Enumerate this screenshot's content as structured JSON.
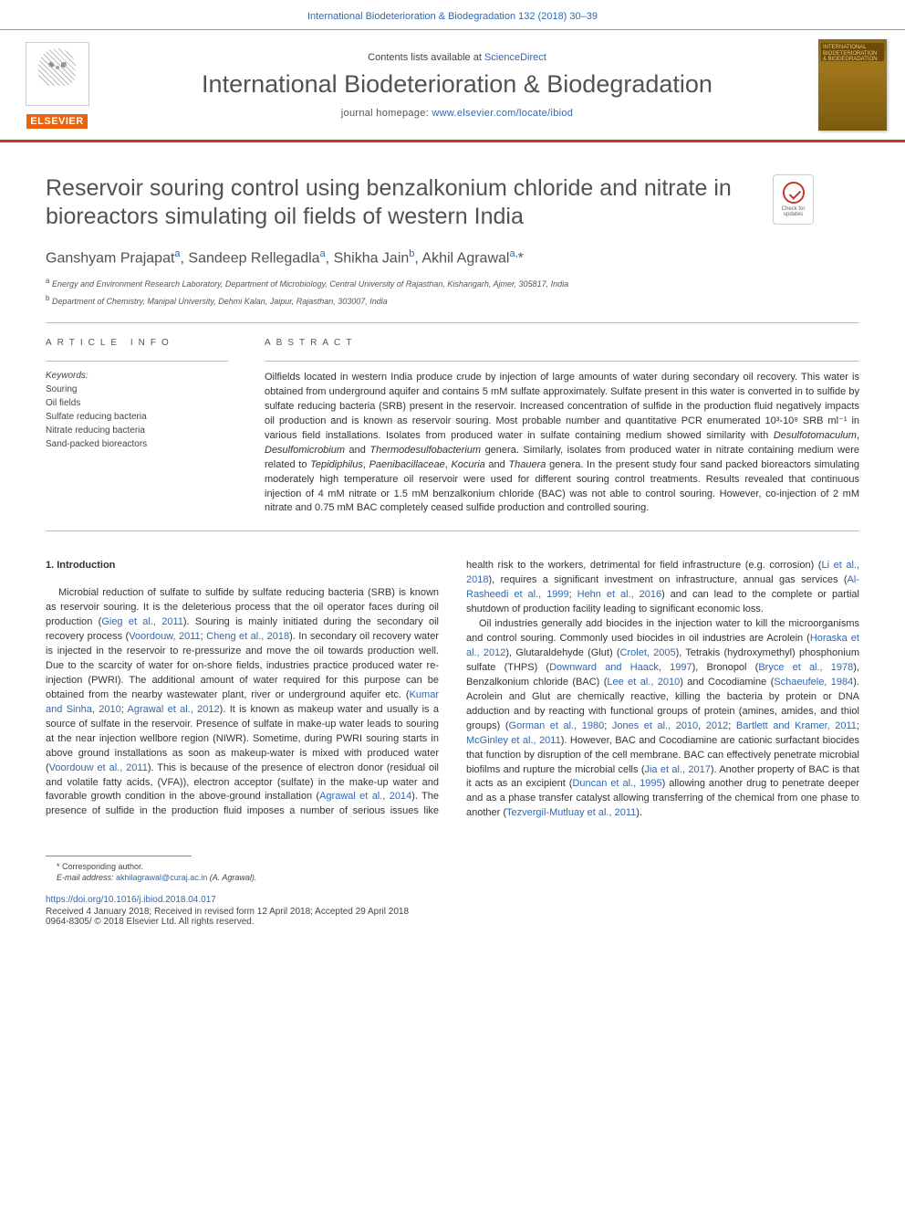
{
  "header": {
    "top_citation": "International Biodeterioration & Biodegradation 132 (2018) 30–39",
    "contents_prefix": "Contents lists available at ",
    "sciencedirect": "ScienceDirect",
    "journal_title": "International Biodeterioration & Biodegradation",
    "homepage_prefix": "journal homepage: ",
    "homepage_url": "www.elsevier.com/locate/ibiod",
    "elsevier": "ELSEVIER",
    "cover_line1": "INTERNATIONAL",
    "cover_line2": "BIODETERIORATION",
    "cover_line3": "& BIODEGRADATION",
    "check_updates": "Check for updates"
  },
  "article": {
    "title": "Reservoir souring control using benzalkonium chloride and nitrate in bioreactors simulating oil fields of western India",
    "authors_html": "Ganshyam Prajapat<sup>a</sup>, Sandeep Rellegadla<sup>a</sup>, Shikha Jain<sup>b</sup>, Akhil Agrawal<sup>a,</sup>*",
    "affil_a": "a Energy and Environment Research Laboratory, Department of Microbiology, Central University of Rajasthan, Kishangarh, Ajmer, 305817, India",
    "affil_b": "b Department of Chemistry, Manipal University, Dehmi Kalan, Jaipur, Rajasthan, 303007, India"
  },
  "info": {
    "heading": "ARTICLE INFO",
    "keywords_label": "Keywords:",
    "keywords": "Souring\nOil fields\nSulfate reducing bacteria\nNitrate reducing bacteria\nSand-packed bioreactors"
  },
  "abstract": {
    "heading": "ABSTRACT",
    "text": "Oilfields located in western India produce crude by injection of large amounts of water during secondary oil recovery. This water is obtained from underground aquifer and contains 5 mM sulfate approximately. Sulfate present in this water is converted in to sulfide by sulfate reducing bacteria (SRB) present in the reservoir. Increased concentration of sulfide in the production fluid negatively impacts oil production and is known as reservoir souring. Most probable number and quantitative PCR enumerated 10³-10⁸ SRB ml⁻¹ in various field installations. Isolates from produced water in sulfate containing medium showed similarity with Desulfotomaculum, Desulfomicrobium and Thermodesulfobacterium genera. Similarly, isolates from produced water in nitrate containing medium were related to Tepidiphilus, Paenibacillaceae, Kocuria and Thauera genera. In the present study four sand packed bioreactors simulating moderately high temperature oil reservoir were used for different souring control treatments. Results revealed that continuous injection of 4 mM nitrate or 1.5 mM benzalkonium chloride (BAC) was not able to control souring. However, co-injection of 2 mM nitrate and 0.75 mM BAC completely ceased sulfide production and controlled souring."
  },
  "body": {
    "section_heading": "1. Introduction",
    "para1_prefix": "Microbial reduction of sulfate to sulfide by sulfate reducing bacteria (SRB) is known as reservoir souring. It is the deleterious process that the oil operator faces during oil production (",
    "cite1": "Gieg et al., 2011",
    "para1_mid1": "). Souring is mainly initiated during the secondary oil recovery process (",
    "cite2": "Voordouw, 2011",
    "para1_mid1b": "; ",
    "cite2b": "Cheng et al., 2018",
    "para1_mid2": "). In secondary oil recovery water is injected in the reservoir to re-pressurize and move the oil towards production well. Due to the scarcity of water for on-shore fields, industries practice produced water re-injection (PWRI). The additional amount of water required for this purpose can be obtained from the nearby wastewater plant, river or underground aquifer etc. (",
    "cite3": "Kumar and Sinha, 2010",
    "para1_mid3": "; ",
    "cite4": "Agrawal et al., 2012",
    "para1_mid4": "). It is known as makeup water and usually is a source of sulfate in the reservoir. Presence of sulfate in make-up water leads to souring at the near injection wellbore region (NIWR). Sometime, during PWRI souring starts in above ground installations as soon as makeup-water is mixed with produced water (",
    "cite5": "Voordouw et al., 2011",
    "para1_mid5": "). This is because of the presence of electron donor (residual oil and volatile fatty acids, (VFA)), electron acceptor (sulfate) in the make-up water and favorable growth condition in the above-ground installation (",
    "cite6": "Agrawal et al., 2014",
    "para1_mid6": "). The presence of sulfide in the production fluid imposes a number of serious issues like health risk to the workers, detrimental for field infrastructure (e.g. corrosion) (",
    "cite7": "Li et al., 2018",
    "para1_mid7": "), requires a significant investment on infrastructure, annual gas services (",
    "cite8": "Al-Rasheedi et al., 1999",
    "para1_mid8": "; ",
    "cite9": "Hehn et al., 2016",
    "para1_end": ") and can lead to the complete or partial shutdown of production facility leading to significant economic loss.",
    "para2_prefix": "Oil industries generally add biocides in the injection water to kill the microorganisms and control souring. Commonly used biocides in oil industries are Acrolein (",
    "cite10": "Horaska et al., 2012",
    "para2_mid1": "), Glutaraldehyde (Glut) (",
    "cite11": "Crolet, 2005",
    "para2_mid2": "), Tetrakis (hydroxymethyl) phosphonium sulfate (THPS) (",
    "cite12": "Downward and Haack, 1997",
    "para2_mid3": "), Bronopol (",
    "cite13": "Bryce et al., 1978",
    "para2_mid4": "), Benzalkonium chloride (BAC) (",
    "cite14": "Lee et al., 2010",
    "para2_mid5": ") and Cocodiamine (",
    "cite15": "Schaeufele, 1984",
    "para2_mid6": "). Acrolein and Glut are chemically reactive, killing the bacteria by protein or DNA adduction and by reacting with functional groups of protein (amines, amides, and thiol groups) (",
    "cite16": "Gorman et al., 1980",
    "para2_mid7": "; ",
    "cite17": "Jones et al., 2010",
    "para2_mid7b": ", ",
    "cite17b": "2012",
    "para2_mid8": "; ",
    "cite18": "Bartlett and Kramer, 2011",
    "para2_mid9": "; ",
    "cite19": "McGinley et al., 2011",
    "para2_mid10": "). However, BAC and Cocodiamine are cationic surfactant biocides that function by disruption of the cell membrane. BAC can effectively penetrate microbial biofilms and rupture the microbial cells (",
    "cite20": "Jia et al., 2017",
    "para2_mid11": "). Another property of BAC is that it acts as an excipient (",
    "cite21": "Duncan et al., 1995",
    "para2_mid12": ") allowing another drug to penetrate deeper and as a phase transfer catalyst allowing transferring of the chemical from one phase to another (",
    "cite22": "Tezvergil-Mutluay et al., 2011",
    "para2_end": ")."
  },
  "footer": {
    "corresponding": "* Corresponding author.",
    "email_label": "E-mail address: ",
    "email": "akhilagrawal@curaj.ac.in",
    "email_suffix": " (A. Agrawal).",
    "doi": "https://doi.org/10.1016/j.ibiod.2018.04.017",
    "received": "Received 4 January 2018; Received in revised form 12 April 2018; Accepted 29 April 2018",
    "copyright": "0964-8305/ © 2018 Elsevier Ltd. All rights reserved."
  },
  "colors": {
    "link_blue": "#3068b0",
    "accent_red": "#c0392b",
    "elsevier_orange": "#e8630a",
    "text_gray": "#525252",
    "body_text": "#333333"
  },
  "typography": {
    "journal_title_size": 27,
    "article_title_size": 25,
    "author_size": 16,
    "body_size": 11,
    "affiliation_size": 9,
    "footer_size": 9
  }
}
